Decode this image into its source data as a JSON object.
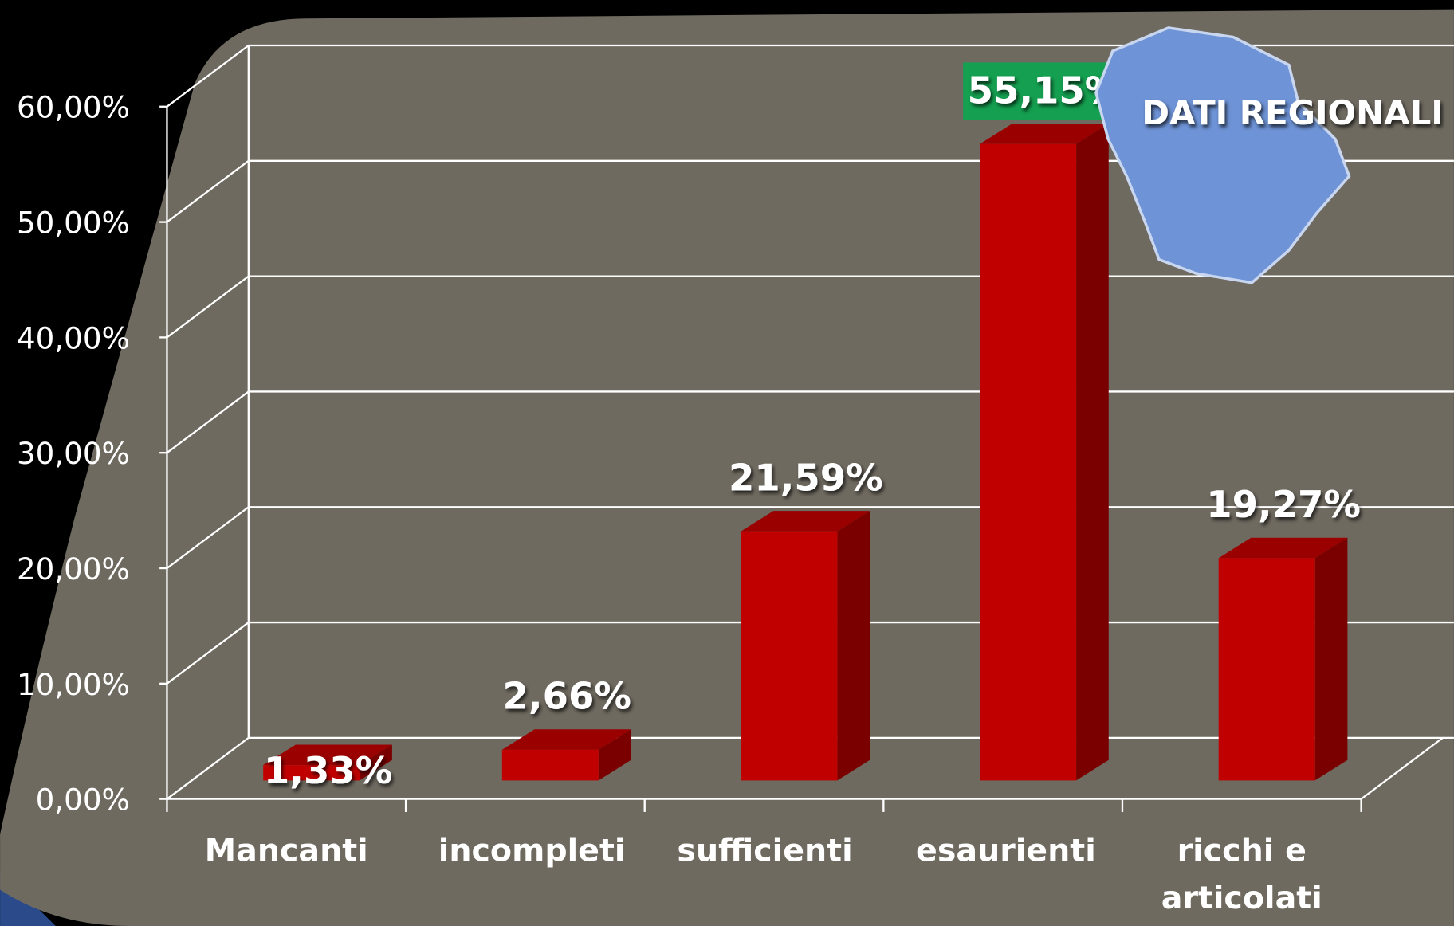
{
  "chart_data": {
    "type": "bar",
    "title": "DATI REGIONALI",
    "categories": [
      "Mancanti",
      "incompleti",
      "sufficienti",
      "esaurienti",
      "ricchi e articolati"
    ],
    "values": [
      1.33,
      2.66,
      21.59,
      55.15,
      19.27
    ],
    "value_labels": [
      "1,33%",
      "2,66%",
      "21,59%",
      "55,15%",
      "19,27%"
    ],
    "color": "#c00000",
    "ylim": [
      0,
      60
    ],
    "yticks": [
      {
        "value": 0,
        "label": "0,00%"
      },
      {
        "value": 10,
        "label": "10,00%"
      },
      {
        "value": 20,
        "label": "20,00%"
      },
      {
        "value": 30,
        "label": "30,00%"
      },
      {
        "value": 40,
        "label": "40,00%"
      },
      {
        "value": 50,
        "label": "50,00%"
      },
      {
        "value": 60,
        "label": "60,00%"
      }
    ],
    "grid": true
  }
}
